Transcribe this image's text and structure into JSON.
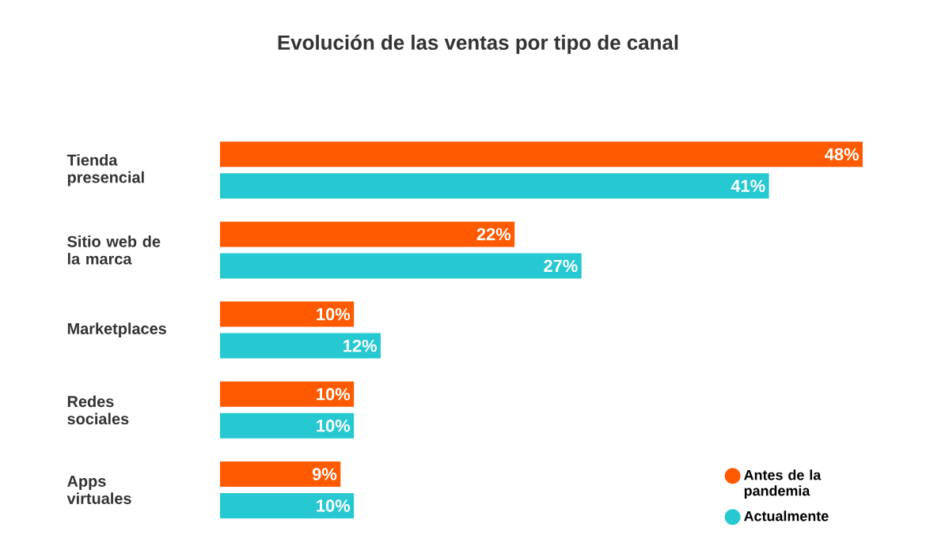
{
  "chart_data": {
    "type": "bar",
    "orientation": "horizontal",
    "title": "Evolución de las ventas por tipo de canal",
    "categories": [
      "Tienda presencial",
      "Sitio web de la marca",
      "Marketplaces",
      "Redes sociales",
      "Apps virtuales"
    ],
    "series": [
      {
        "name": "Antes de la pandemia",
        "color": "#ff5a00",
        "values": [
          48,
          22,
          10,
          10,
          9
        ],
        "value_labels": [
          "48%",
          "22%",
          "10%",
          "10%",
          "9%"
        ]
      },
      {
        "name": "Actualmente",
        "color": "#26c8d2",
        "values": [
          41,
          27,
          12,
          10,
          10
        ],
        "value_labels": [
          "41%",
          "27%",
          "12%",
          "10%",
          "10%"
        ]
      }
    ],
    "legend": "bottom right"
  }
}
